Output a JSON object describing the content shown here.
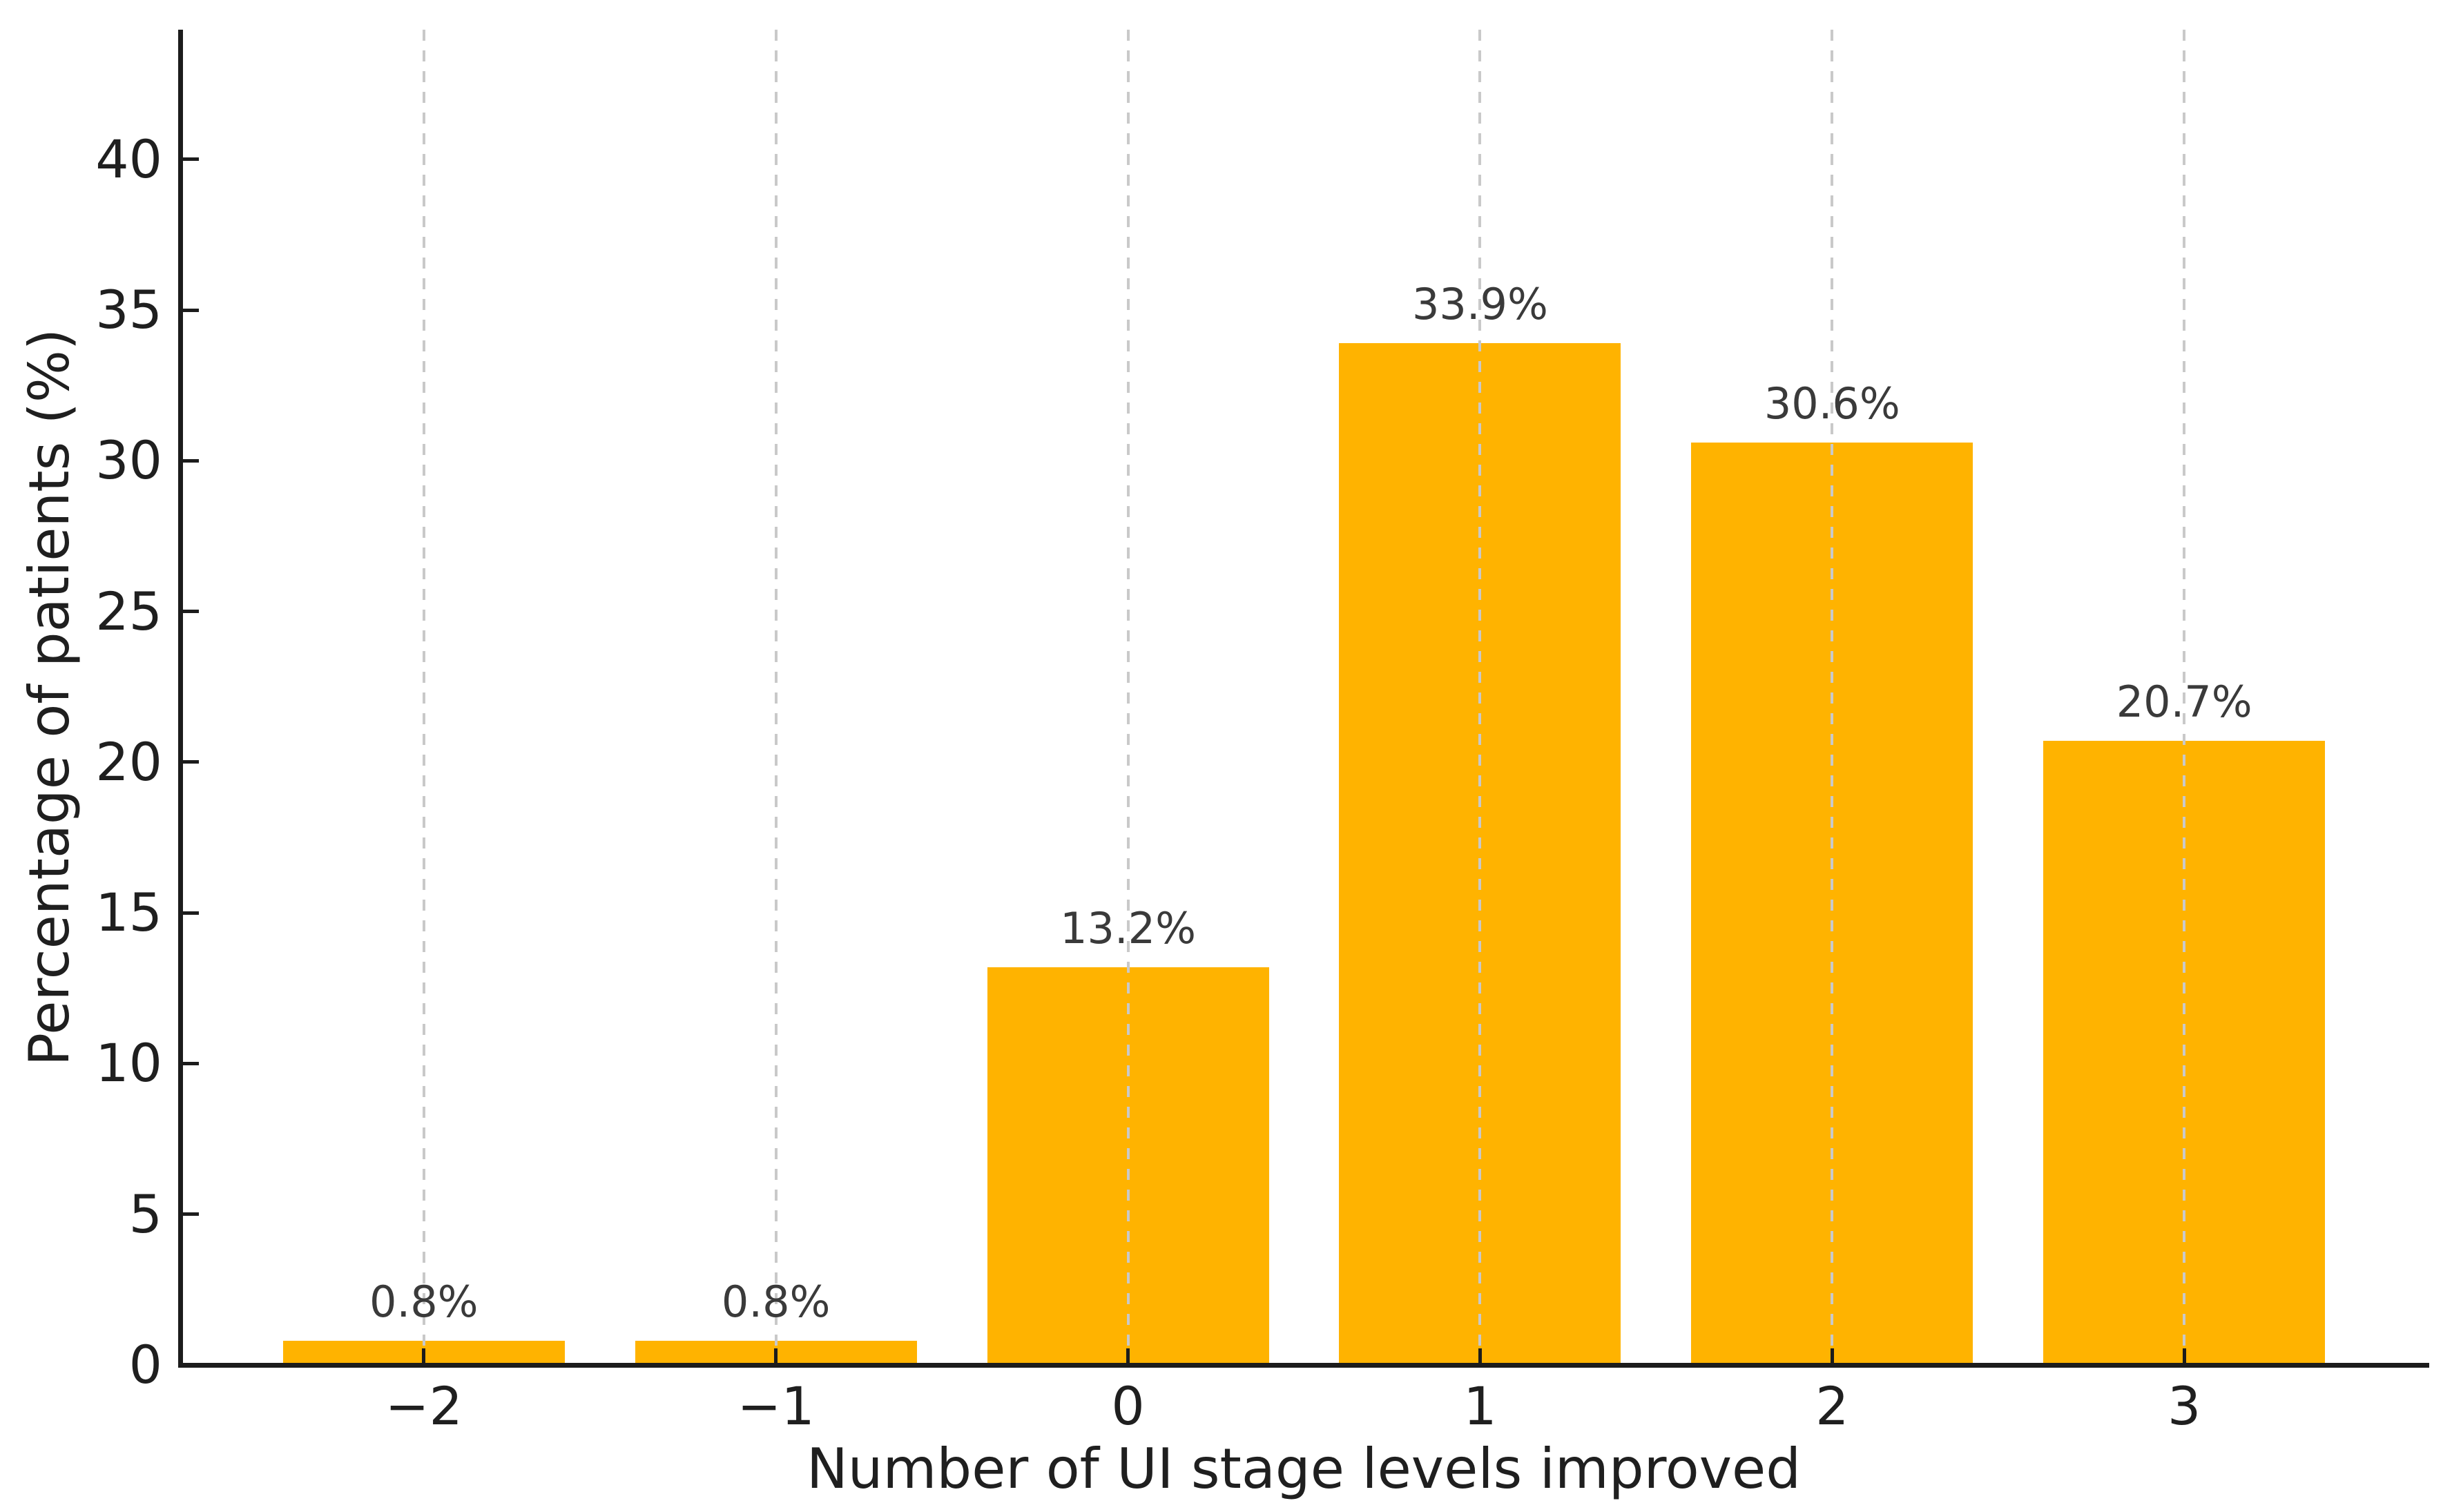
{
  "chart_data": {
    "type": "bar",
    "title": "",
    "xlabel": "Number of UI stage levels improved",
    "ylabel": "Percentage of patients (%)",
    "categories": [
      "−2",
      "−1",
      "0",
      "1",
      "2",
      "3"
    ],
    "positions": [
      -2,
      -1,
      0,
      1,
      2,
      3
    ],
    "values": [
      0.8,
      0.8,
      13.2,
      33.9,
      30.6,
      20.7
    ],
    "bar_labels": [
      "0.8%",
      "0.8%",
      "13.2%",
      "33.9%",
      "30.6%",
      "20.7%"
    ],
    "yticks": [
      0,
      5,
      10,
      15,
      20,
      25,
      30,
      35,
      40
    ],
    "ytick_labels": [
      "0",
      "5",
      "10",
      "15",
      "20",
      "25",
      "30",
      "35",
      "40"
    ],
    "ylim": [
      0,
      44.3
    ],
    "xlim": [
      -2.69,
      3.69
    ],
    "bar_width_units": 0.8,
    "grid": "vertical-dashed",
    "legend_position": "none",
    "colors": {
      "bar": "#ffb300",
      "gridline": "#c9c9c9",
      "axis": "#1c1c1c",
      "tick_text": "#1f1f1f",
      "annotation_text": "#3a3a3a",
      "background": "#ffffff"
    }
  }
}
